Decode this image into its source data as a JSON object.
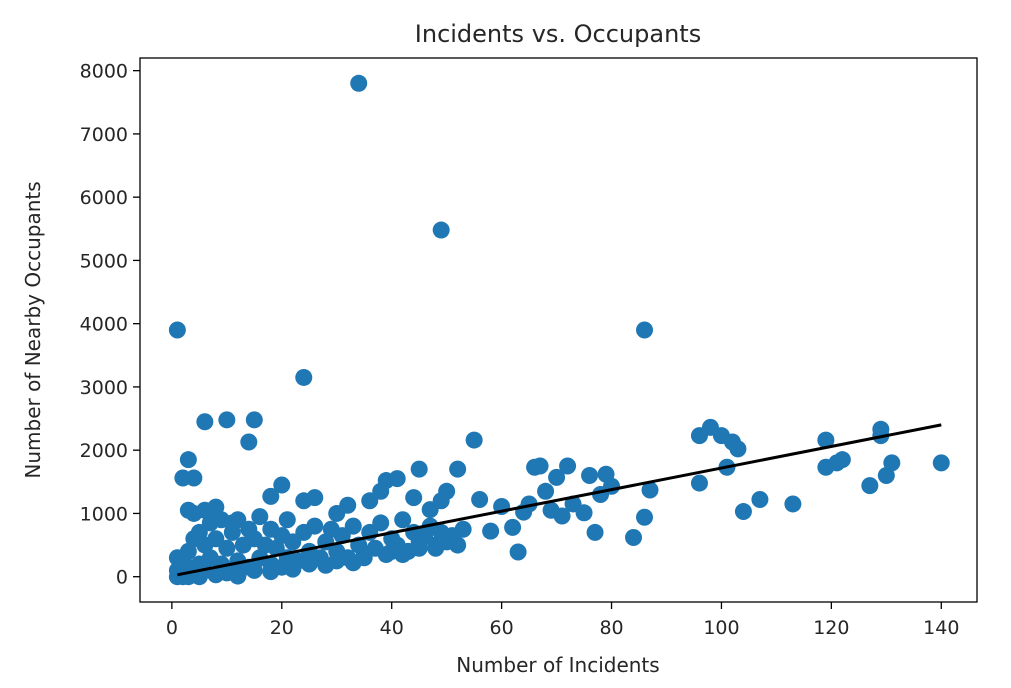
{
  "chart_data": {
    "type": "scatter",
    "title": "Incidents vs. Occupants",
    "xlabel": "Number of Incidents",
    "ylabel": "Number of Nearby Occupants",
    "xlim": [
      -5.8,
      146.5
    ],
    "ylim": [
      -400,
      8200
    ],
    "xticks": [
      0,
      20,
      40,
      60,
      80,
      100,
      120,
      140
    ],
    "yticks": [
      0,
      1000,
      2000,
      3000,
      4000,
      5000,
      6000,
      7000,
      8000
    ],
    "grid": false,
    "colors": {
      "points": "#1f77b4",
      "fit_line": "#000000"
    },
    "fit_line": {
      "x": [
        1,
        140
      ],
      "y": [
        30,
        2400
      ]
    },
    "points": [
      [
        1,
        3900
      ],
      [
        34,
        7800
      ],
      [
        49,
        5480
      ],
      [
        86,
        3900
      ],
      [
        24,
        3150
      ],
      [
        6,
        2450
      ],
      [
        10,
        2480
      ],
      [
        15,
        2480
      ],
      [
        14,
        2130
      ],
      [
        3,
        1850
      ],
      [
        2,
        1560
      ],
      [
        4,
        1560
      ],
      [
        18,
        1270
      ],
      [
        20,
        1450
      ],
      [
        24,
        1200
      ],
      [
        26,
        1250
      ],
      [
        30,
        1000
      ],
      [
        32,
        1130
      ],
      [
        36,
        1200
      ],
      [
        38,
        1350
      ],
      [
        39,
        1520
      ],
      [
        41,
        1550
      ],
      [
        44,
        1250
      ],
      [
        45,
        1700
      ],
      [
        47,
        1060
      ],
      [
        49,
        1200
      ],
      [
        50,
        1350
      ],
      [
        52,
        1700
      ],
      [
        55,
        2160
      ],
      [
        56,
        1220
      ],
      [
        58,
        720
      ],
      [
        60,
        1110
      ],
      [
        62,
        780
      ],
      [
        63,
        390
      ],
      [
        64,
        1020
      ],
      [
        65,
        1150
      ],
      [
        66,
        1730
      ],
      [
        67,
        1750
      ],
      [
        68,
        1350
      ],
      [
        69,
        1050
      ],
      [
        70,
        1570
      ],
      [
        71,
        960
      ],
      [
        72,
        1750
      ],
      [
        73,
        1150
      ],
      [
        75,
        1010
      ],
      [
        76,
        1600
      ],
      [
        77,
        700
      ],
      [
        78,
        1300
      ],
      [
        79,
        1620
      ],
      [
        80,
        1430
      ],
      [
        84,
        620
      ],
      [
        86,
        940
      ],
      [
        87,
        1370
      ],
      [
        96,
        1480
      ],
      [
        96,
        2230
      ],
      [
        98,
        2360
      ],
      [
        100,
        2230
      ],
      [
        102,
        2130
      ],
      [
        103,
        2020
      ],
      [
        101,
        1730
      ],
      [
        104,
        1030
      ],
      [
        107,
        1220
      ],
      [
        113,
        1150
      ],
      [
        119,
        2160
      ],
      [
        119,
        1730
      ],
      [
        121,
        1800
      ],
      [
        122,
        1850
      ],
      [
        127,
        1440
      ],
      [
        129,
        2330
      ],
      [
        129,
        2230
      ],
      [
        130,
        1600
      ],
      [
        131,
        1800
      ],
      [
        140,
        1800
      ],
      [
        1,
        100
      ],
      [
        1,
        300
      ],
      [
        2,
        50
      ],
      [
        2,
        250
      ],
      [
        3,
        150
      ],
      [
        3,
        400
      ],
      [
        4,
        600
      ],
      [
        4,
        1000
      ],
      [
        5,
        200
      ],
      [
        5,
        700
      ],
      [
        6,
        100
      ],
      [
        6,
        500
      ],
      [
        7,
        850
      ],
      [
        7,
        300
      ],
      [
        8,
        600
      ],
      [
        9,
        200
      ],
      [
        9,
        900
      ],
      [
        10,
        450
      ],
      [
        11,
        700
      ],
      [
        12,
        250
      ],
      [
        12,
        900
      ],
      [
        13,
        500
      ],
      [
        14,
        150
      ],
      [
        14,
        750
      ],
      [
        15,
        600
      ],
      [
        16,
        300
      ],
      [
        16,
        950
      ],
      [
        17,
        500
      ],
      [
        18,
        200
      ],
      [
        18,
        750
      ],
      [
        19,
        450
      ],
      [
        20,
        650
      ],
      [
        21,
        300
      ],
      [
        21,
        900
      ],
      [
        22,
        550
      ],
      [
        23,
        250
      ],
      [
        24,
        700
      ],
      [
        25,
        400
      ],
      [
        26,
        800
      ],
      [
        27,
        300
      ],
      [
        28,
        550
      ],
      [
        29,
        750
      ],
      [
        30,
        400
      ],
      [
        31,
        650
      ],
      [
        32,
        300
      ],
      [
        33,
        800
      ],
      [
        34,
        500
      ],
      [
        35,
        350
      ],
      [
        36,
        700
      ],
      [
        37,
        450
      ],
      [
        38,
        850
      ],
      [
        39,
        350
      ],
      [
        40,
        600
      ],
      [
        41,
        500
      ],
      [
        42,
        900
      ],
      [
        43,
        400
      ],
      [
        44,
        700
      ],
      [
        45,
        550
      ],
      [
        46,
        650
      ],
      [
        47,
        800
      ],
      [
        48,
        450
      ],
      [
        49,
        700
      ],
      [
        50,
        550
      ],
      [
        51,
        650
      ],
      [
        52,
        500
      ],
      [
        53,
        750
      ],
      [
        6,
        1050
      ],
      [
        8,
        1100
      ],
      [
        3,
        1050
      ],
      [
        11,
        850
      ],
      [
        1,
        0
      ],
      [
        2,
        0
      ],
      [
        3,
        0
      ],
      [
        5,
        0
      ],
      [
        8,
        30
      ],
      [
        10,
        60
      ],
      [
        12,
        10
      ],
      [
        15,
        100
      ],
      [
        18,
        80
      ],
      [
        20,
        150
      ],
      [
        22,
        120
      ],
      [
        25,
        200
      ],
      [
        28,
        180
      ],
      [
        30,
        250
      ],
      [
        33,
        220
      ],
      [
        35,
        300
      ],
      [
        40,
        400
      ],
      [
        42,
        350
      ],
      [
        45,
        450
      ],
      [
        48,
        500
      ]
    ]
  }
}
